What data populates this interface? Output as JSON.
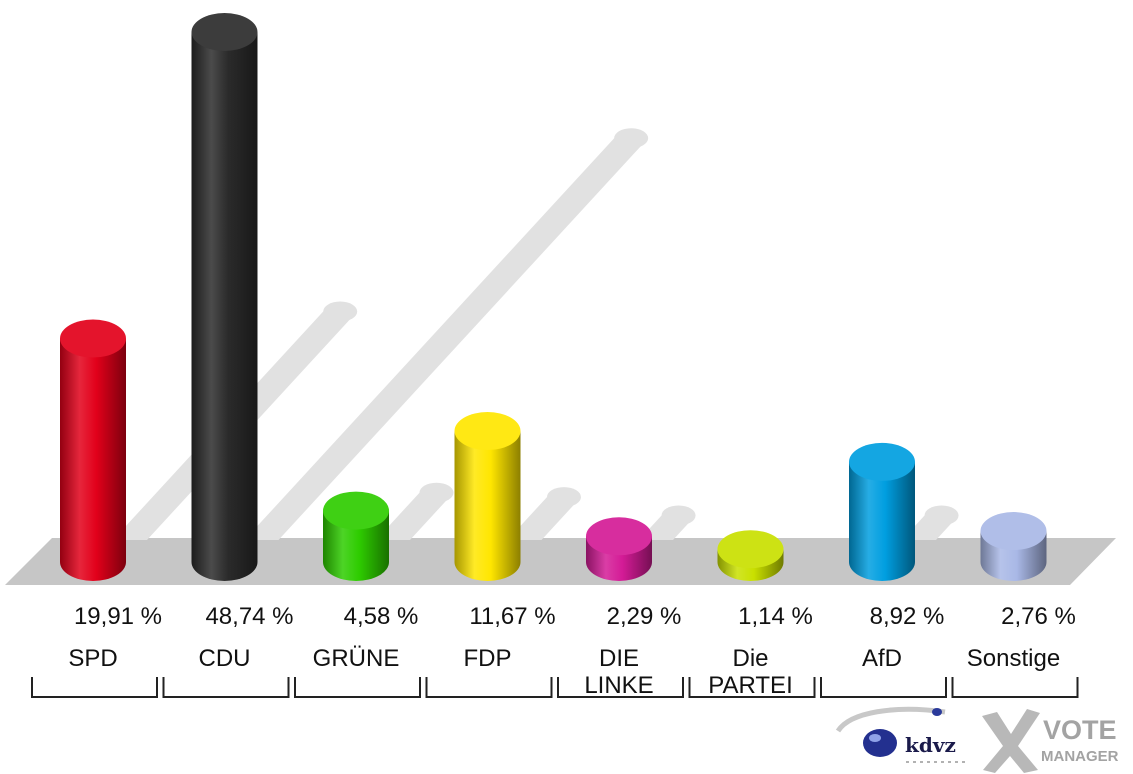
{
  "chart_data": {
    "type": "bar",
    "title": "",
    "xlabel": "",
    "ylabel": "",
    "ylim": [
      0,
      50
    ],
    "categories": [
      "SPD",
      "CDU",
      "GRÜNE",
      "FDP",
      "DIE LINKE",
      "Die PARTEI",
      "AfD",
      "Sonstige"
    ],
    "category_lines": [
      [
        "SPD"
      ],
      [
        "CDU"
      ],
      [
        "GRÜNE"
      ],
      [
        "FDP"
      ],
      [
        "DIE",
        "LINKE"
      ],
      [
        "Die",
        "PARTEI"
      ],
      [
        "AfD"
      ],
      [
        "Sonstige"
      ]
    ],
    "values": [
      19.91,
      48.74,
      4.58,
      11.67,
      2.29,
      1.14,
      8.92,
      2.76
    ],
    "data_labels": [
      "19,91 %",
      "48,74 %",
      "4,58 %",
      "11,67 %",
      "2,29 %",
      "1,14 %",
      "8,92 %",
      "2,76 %"
    ],
    "previous_values": [
      26.1,
      45.9,
      5.4,
      4.9,
      2.8,
      0,
      2.8,
      0
    ],
    "colors": [
      "#e2001a",
      "#2b2b2b",
      "#2ecc00",
      "#ffe600",
      "#d41b96",
      "#c9e000",
      "#009ee0",
      "#a9b8e6"
    ],
    "grid": false,
    "legend": "none"
  },
  "logos": {
    "left_logo_text": "kdvz",
    "right_logo_line1": "VOTE",
    "right_logo_line2": "MANAGER"
  }
}
